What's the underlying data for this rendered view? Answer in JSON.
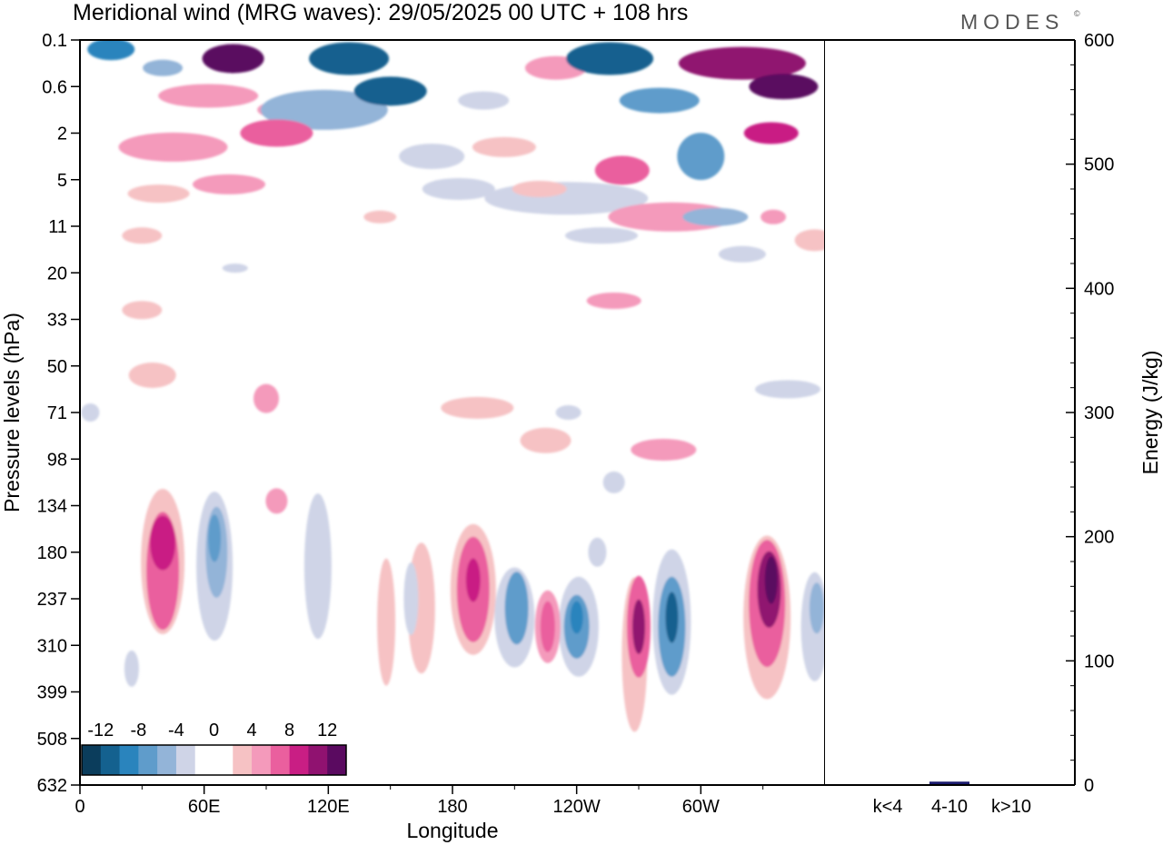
{
  "title": "Meridional wind (MRG waves):  29/05/2025  00 UTC  + 108 hrs",
  "brand": "MODES",
  "brand_mark": "©",
  "chart_data": [
    {
      "type": "heatmap",
      "xlabel": "Longitude",
      "ylabel": "Pressure levels (hPa)",
      "x_tick_labels": [
        "0",
        "60E",
        "120E",
        "180",
        "120W",
        "60W"
      ],
      "x_tick_values_deg": [
        0,
        60,
        120,
        180,
        240,
        300
      ],
      "xlim_deg": [
        0,
        360
      ],
      "y_tick_labels": [
        "0.1",
        "0.6",
        "2",
        "5",
        "11",
        "20",
        "33",
        "50",
        "71",
        "98",
        "134",
        "180",
        "237",
        "310",
        "399",
        "508",
        "632"
      ],
      "y_scale": "pressure levels, top 0.1 hPa to bottom 632 hPa",
      "colorbar": {
        "labels": [
          "-12",
          "-8",
          "-4",
          "0",
          "4",
          "8",
          "12"
        ],
        "colors": [
          "#0b3d5c",
          "#14618f",
          "#2a84bd",
          "#5f9ccb",
          "#93b4d8",
          "#cfd4e7",
          "#ffffff",
          "#ffffff",
          "#f6c2c4",
          "#f49abb",
          "#ea5f9e",
          "#c91e84",
          "#901270",
          "#5a0a60"
        ],
        "placement": "bottom-left inside plot"
      },
      "grid": false,
      "features": [
        {
          "lon": 40,
          "level": "180",
          "value": 8
        },
        {
          "lon": 65,
          "level": "134",
          "value": -6
        },
        {
          "lon": 195,
          "level": "180",
          "value": 7
        },
        {
          "lon": 233,
          "level": "237",
          "value": -7
        },
        {
          "lon": 300,
          "level": "237",
          "value": -10
        },
        {
          "lon": 334,
          "level": "180",
          "value": 13
        },
        {
          "lon": 74,
          "level": "0.1",
          "value": 13
        },
        {
          "lon": 130,
          "level": "0.1",
          "value": -12
        },
        {
          "lon": 262,
          "level": "0.1",
          "value": -12
        },
        {
          "lon": 335,
          "level": "0.6",
          "value": 12
        }
      ]
    },
    {
      "type": "bar",
      "categories": [
        "k<4",
        "4-10",
        "k>10"
      ],
      "values": [
        0,
        2,
        0
      ],
      "ylabel": "Energy (J/kg)",
      "ylim": [
        0,
        600
      ],
      "y_tick_labels": [
        "0",
        "100",
        "200",
        "300",
        "400",
        "500",
        "600"
      ],
      "y_tick_values": [
        0,
        100,
        200,
        300,
        400,
        500,
        600
      ],
      "bar_color": "#1a1a6e"
    }
  ]
}
